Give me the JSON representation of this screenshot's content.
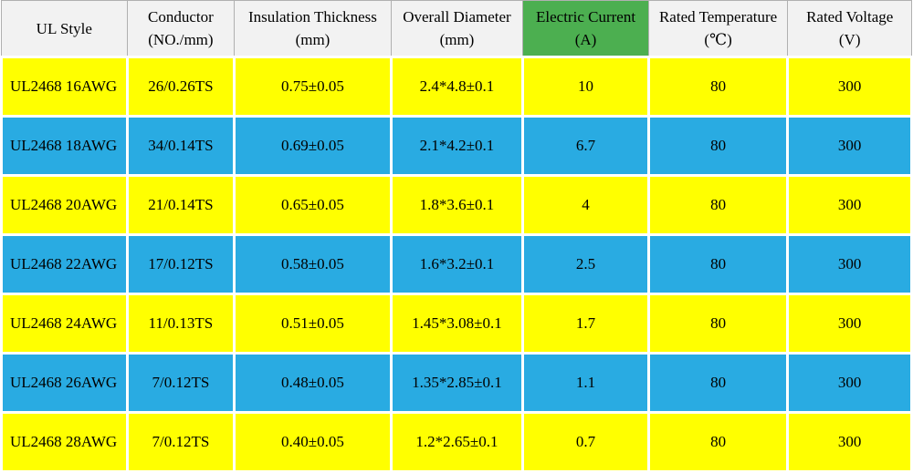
{
  "chart_data": {
    "type": "table",
    "columns": [
      {
        "label": "UL Style",
        "sub": ""
      },
      {
        "label": "Conductor",
        "sub": "(NO./mm)"
      },
      {
        "label": "Insulation Thickness",
        "sub": "(mm)"
      },
      {
        "label": "Overall Diameter",
        "sub": "(mm)"
      },
      {
        "label": "Electric Current",
        "sub": "(A)"
      },
      {
        "label": "Rated Temperature",
        "sub": "(℃)"
      },
      {
        "label": "Rated Voltage",
        "sub": "(V)"
      }
    ],
    "highlight_col_index": 4,
    "rows": [
      [
        "UL2468 16AWG",
        "26/0.26TS",
        "0.75±0.05",
        "2.4*4.8±0.1",
        "10",
        "80",
        "300"
      ],
      [
        "UL2468 18AWG",
        "34/0.14TS",
        "0.69±0.05",
        "2.1*4.2±0.1",
        "6.7",
        "80",
        "300"
      ],
      [
        "UL2468 20AWG",
        "21/0.14TS",
        "0.65±0.05",
        "1.8*3.6±0.1",
        "4",
        "80",
        "300"
      ],
      [
        "UL2468 22AWG",
        "17/0.12TS",
        "0.58±0.05",
        "1.6*3.2±0.1",
        "2.5",
        "80",
        "300"
      ],
      [
        "UL2468 24AWG",
        "11/0.13TS",
        "0.51±0.05",
        "1.45*3.08±0.1",
        "1.7",
        "80",
        "300"
      ],
      [
        "UL2468 26AWG",
        "7/0.12TS",
        "0.48±0.05",
        "1.35*2.85±0.1",
        "1.1",
        "80",
        "300"
      ],
      [
        "UL2468 28AWG",
        "7/0.12TS",
        "0.40±0.05",
        "1.2*2.65±0.1",
        "0.7",
        "80",
        "300"
      ]
    ],
    "row_stripe_pattern": [
      "yellow",
      "blue"
    ],
    "legend_position": "none",
    "grid": "on"
  },
  "colors": {
    "header_bg": "#f2f2f2",
    "header_border": "#b0b0b0",
    "highlight_green": "#4caf50",
    "row_yellow": "#ffff00",
    "row_blue": "#29abe2",
    "cell_border": "#ffffff",
    "text": "#000000"
  }
}
